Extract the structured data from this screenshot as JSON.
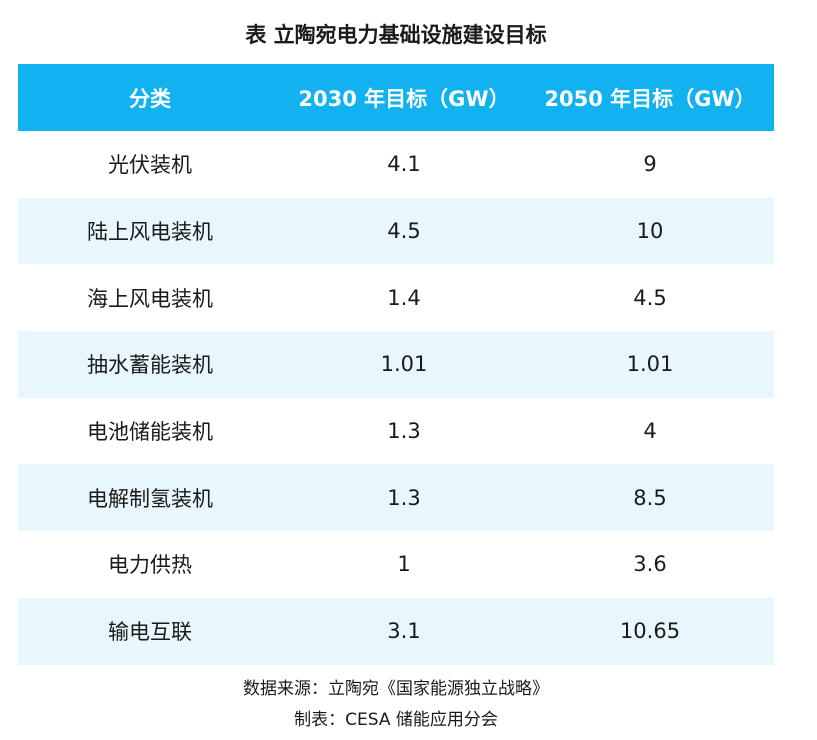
{
  "title": "表  立陶宛电力基础设施建设目标",
  "table": {
    "headers": [
      "分类",
      "2030 年目标（GW）",
      "2050 年目标（GW）"
    ],
    "rows": [
      [
        "光伏装机",
        "4.1",
        "9"
      ],
      [
        "陆上风电装机",
        "4.5",
        "10"
      ],
      [
        "海上风电装机",
        "1.4",
        "4.5"
      ],
      [
        "抽水蓄能装机",
        "1.01",
        "1.01"
      ],
      [
        "电池储能装机",
        "1.3",
        "4"
      ],
      [
        "电解制氢装机",
        "1.3",
        "8.5"
      ],
      [
        "电力供热",
        "1",
        "3.6"
      ],
      [
        "输电互联",
        "3.1",
        "10.65"
      ]
    ]
  },
  "footer": {
    "source": "数据来源：立陶宛《国家能源独立战略》",
    "maker": "制表：CESA 储能应用分会"
  },
  "colors": {
    "header_bg": "#11b2ef",
    "stripe_bg": "#e8f7fd"
  }
}
